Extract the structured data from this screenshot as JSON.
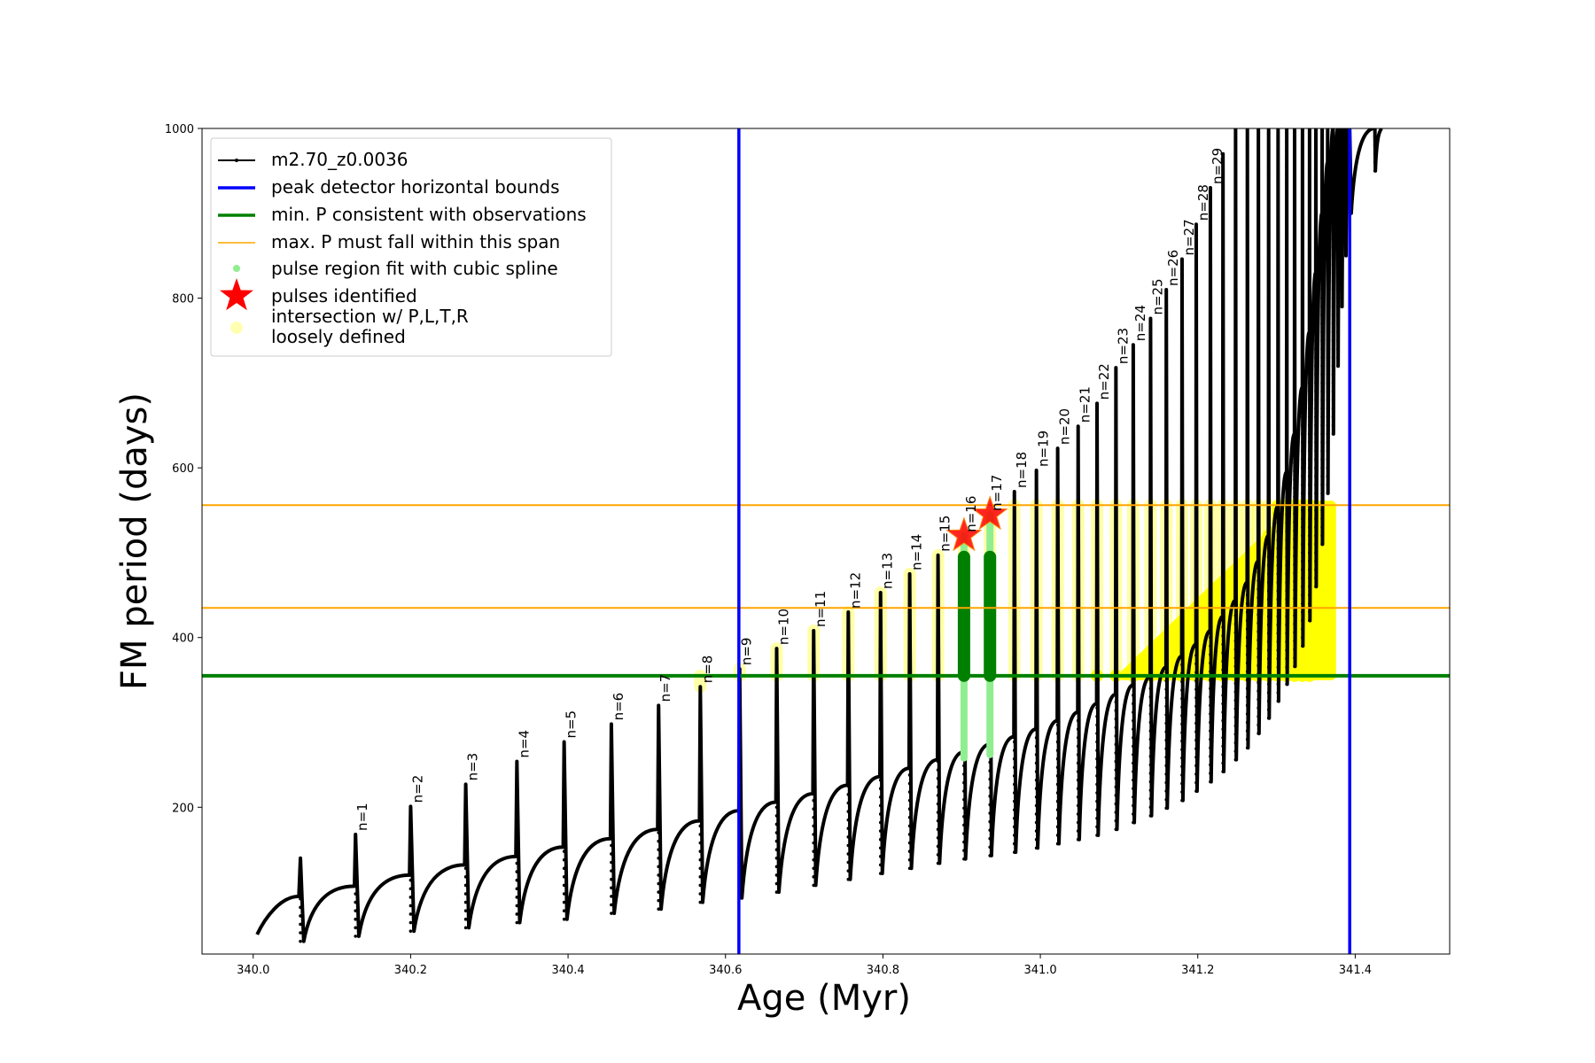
{
  "chart_data": {
    "type": "line",
    "title": "",
    "xlabel": "Age (Myr)",
    "ylabel": "FM period (days)",
    "xlim": [
      339.935,
      341.52
    ],
    "ylim": [
      27,
      1000
    ],
    "xticks": [
      340.0,
      340.2,
      340.4,
      340.6,
      340.8,
      341.0,
      341.2,
      341.4
    ],
    "xtick_labels": [
      "340.0",
      "340.2",
      "340.4",
      "340.6",
      "340.8",
      "341.0",
      "341.2",
      "341.4"
    ],
    "yticks": [
      200,
      400,
      600,
      800,
      1000
    ],
    "ytick_labels": [
      "200",
      "400",
      "600",
      "800",
      "1000"
    ],
    "grid": false,
    "legend_position": "top-left",
    "series": [
      {
        "name": "m2.70_z0.0036",
        "color": "#000000",
        "start": [
          340.005,
          50
        ],
        "pulses": [
          {
            "x": 340.06,
            "peak": 140,
            "pre": 95,
            "min": 42
          },
          {
            "x": 340.13,
            "peak": 168,
            "pre": 107,
            "min": 48
          },
          {
            "x": 340.2,
            "peak": 201,
            "pre": 120,
            "min": 54
          },
          {
            "x": 340.27,
            "peak": 227,
            "pre": 132,
            "min": 58
          },
          {
            "x": 340.335,
            "peak": 254,
            "pre": 142,
            "min": 64
          },
          {
            "x": 340.395,
            "peak": 277,
            "pre": 153,
            "min": 68
          },
          {
            "x": 340.455,
            "peak": 298,
            "pre": 163,
            "min": 75
          },
          {
            "x": 340.515,
            "peak": 320,
            "pre": 174,
            "min": 80
          },
          {
            "x": 340.568,
            "peak": 342,
            "pre": 184,
            "min": 88
          },
          {
            "x": 340.618,
            "peak": 363,
            "pre": 196,
            "min": 93
          },
          {
            "x": 340.665,
            "peak": 387,
            "pre": 206,
            "min": 100
          },
          {
            "x": 340.712,
            "peak": 408,
            "pre": 216,
            "min": 108
          },
          {
            "x": 340.756,
            "peak": 430,
            "pre": 226,
            "min": 115
          },
          {
            "x": 340.797,
            "peak": 453,
            "pre": 236,
            "min": 122
          },
          {
            "x": 340.834,
            "peak": 475,
            "pre": 246,
            "min": 128
          },
          {
            "x": 340.87,
            "peak": 497,
            "pre": 256,
            "min": 134
          },
          {
            "x": 340.903,
            "peak": 520,
            "pre": 265,
            "min": 139
          },
          {
            "x": 340.936,
            "peak": 545,
            "pre": 274,
            "min": 143
          },
          {
            "x": 340.967,
            "peak": 572,
            "pre": 283,
            "min": 147
          },
          {
            "x": 340.995,
            "peak": 597,
            "pre": 292,
            "min": 152
          },
          {
            "x": 341.022,
            "peak": 623,
            "pre": 302,
            "min": 157
          },
          {
            "x": 341.048,
            "peak": 649,
            "pre": 312,
            "min": 162
          },
          {
            "x": 341.072,
            "peak": 676,
            "pre": 322,
            "min": 167
          },
          {
            "x": 341.096,
            "peak": 718,
            "pre": 333,
            "min": 174
          },
          {
            "x": 341.118,
            "peak": 745,
            "pre": 344,
            "min": 182
          },
          {
            "x": 341.14,
            "peak": 776,
            "pre": 354,
            "min": 190
          },
          {
            "x": 341.16,
            "peak": 810,
            "pre": 365,
            "min": 199
          },
          {
            "x": 341.18,
            "peak": 846,
            "pre": 378,
            "min": 208
          },
          {
            "x": 341.198,
            "peak": 887,
            "pre": 392,
            "min": 219
          },
          {
            "x": 341.216,
            "peak": 930,
            "pre": 408,
            "min": 230
          },
          {
            "x": 341.232,
            "peak": 970,
            "pre": 425,
            "min": 242
          },
          {
            "x": 341.248,
            "peak": 1000,
            "pre": 444,
            "min": 256
          },
          {
            "x": 341.263,
            "peak": 1000,
            "pre": 465,
            "min": 270
          },
          {
            "x": 341.277,
            "peak": 1000,
            "pre": 490,
            "min": 287
          },
          {
            "x": 341.29,
            "peak": 1000,
            "pre": 520,
            "min": 305
          },
          {
            "x": 341.302,
            "peak": 1000,
            "pre": 555,
            "min": 325
          },
          {
            "x": 341.313,
            "peak": 1000,
            "pre": 595,
            "min": 345
          },
          {
            "x": 341.323,
            "peak": 1000,
            "pre": 640,
            "min": 366
          },
          {
            "x": 341.333,
            "peak": 1000,
            "pre": 695,
            "min": 390
          },
          {
            "x": 341.342,
            "peak": 1000,
            "pre": 760,
            "min": 420
          },
          {
            "x": 341.35,
            "peak": 1000,
            "pre": 830,
            "min": 460
          },
          {
            "x": 341.358,
            "peak": 1000,
            "pre": 900,
            "min": 510
          },
          {
            "x": 341.365,
            "peak": 1000,
            "pre": 960,
            "min": 570
          },
          {
            "x": 341.372,
            "peak": 1000,
            "pre": 1000,
            "min": 640
          },
          {
            "x": 341.378,
            "peak": 1000,
            "pre": 1000,
            "min": 720
          },
          {
            "x": 341.383,
            "peak": 1000,
            "pre": 1000,
            "min": 790
          },
          {
            "x": 341.388,
            "peak": 1000,
            "pre": 1000,
            "min": 850
          },
          {
            "x": 341.393,
            "peak": 1000,
            "pre": 1000,
            "min": 900
          },
          {
            "x": 341.425,
            "peak": 1000,
            "pre": 1000,
            "min": 950
          }
        ]
      },
      {
        "name": "peak detector horizontal bounds",
        "color": "#0000ff",
        "x": [
          340.617,
          341.393
        ]
      },
      {
        "name": "min. P consistent with observations",
        "color": "#008000",
        "y": 355
      },
      {
        "name": "max. P must fall within this span",
        "color": "#ffa500",
        "y": [
          435,
          556
        ]
      },
      {
        "name": "pulse region fit with cubic spline",
        "color": "#90ee90",
        "regions": [
          {
            "x": 340.903,
            "y": [
              258,
              520
            ]
          },
          {
            "x": 340.936,
            "y": [
              262,
              545
            ]
          }
        ],
        "fit_color": "#008000",
        "fit_y": [
          355,
          495
        ]
      },
      {
        "name": "pulses identified",
        "color": "#ff0000",
        "points": [
          {
            "x": 340.903,
            "y": 520
          },
          {
            "x": 340.936,
            "y": 545
          }
        ]
      },
      {
        "name": "intersection w/ P,L,T,R\nloosely defined",
        "color": "#ffff00",
        "pulse_range": [
          9,
          40
        ],
        "y_span": [
          355,
          556
        ]
      }
    ],
    "annotations": [
      {
        "text": "n=1",
        "x": 340.13,
        "y": 168
      },
      {
        "text": "n=2",
        "x": 340.2,
        "y": 201
      },
      {
        "text": "n=3",
        "x": 340.27,
        "y": 227
      },
      {
        "text": "n=4",
        "x": 340.335,
        "y": 254
      },
      {
        "text": "n=5",
        "x": 340.395,
        "y": 277
      },
      {
        "text": "n=6",
        "x": 340.455,
        "y": 298
      },
      {
        "text": "n=7",
        "x": 340.515,
        "y": 320
      },
      {
        "text": "n=8",
        "x": 340.568,
        "y": 342
      },
      {
        "text": "n=9",
        "x": 340.618,
        "y": 363
      },
      {
        "text": "n=10",
        "x": 340.665,
        "y": 387
      },
      {
        "text": "n=11",
        "x": 340.712,
        "y": 408
      },
      {
        "text": "n=12",
        "x": 340.756,
        "y": 430
      },
      {
        "text": "n=13",
        "x": 340.797,
        "y": 453
      },
      {
        "text": "n=14",
        "x": 340.834,
        "y": 475
      },
      {
        "text": "n=15",
        "x": 340.87,
        "y": 497
      },
      {
        "text": "n=16",
        "x": 340.903,
        "y": 520
      },
      {
        "text": "n=17",
        "x": 340.936,
        "y": 545
      },
      {
        "text": "n=18",
        "x": 340.967,
        "y": 572
      },
      {
        "text": "n=19",
        "x": 340.995,
        "y": 597
      },
      {
        "text": "n=20",
        "x": 341.022,
        "y": 623
      },
      {
        "text": "n=21",
        "x": 341.048,
        "y": 649
      },
      {
        "text": "n=22",
        "x": 341.072,
        "y": 676
      },
      {
        "text": "n=23",
        "x": 341.096,
        "y": 718
      },
      {
        "text": "n=24",
        "x": 341.118,
        "y": 745
      },
      {
        "text": "n=25",
        "x": 341.14,
        "y": 776
      },
      {
        "text": "n=26",
        "x": 341.16,
        "y": 810
      },
      {
        "text": "n=27",
        "x": 341.18,
        "y": 846
      },
      {
        "text": "n=28",
        "x": 341.198,
        "y": 887
      },
      {
        "text": "n=29",
        "x": 341.216,
        "y": 930
      }
    ]
  }
}
